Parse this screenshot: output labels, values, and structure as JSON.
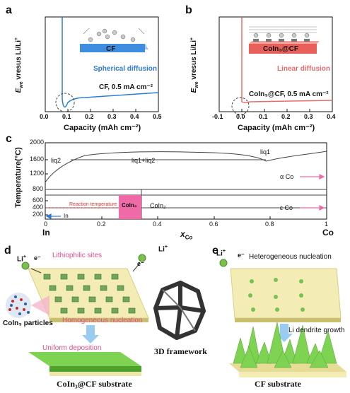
{
  "panels": {
    "a": {
      "label": "a",
      "ylabel": "E_we vresus Li/Li⁺",
      "ylabel_main": "E",
      "ylabel_sub": "we",
      "ylabel_rest": " vresus Li/Li",
      "ylabel_sup": "+",
      "xlabel": "Capacity (mAh cm⁻²)",
      "xticks": [
        "0.0",
        "0.1",
        "0.2",
        "0.3",
        "0.4",
        "0.5"
      ],
      "inset_title": "CF",
      "annotation": "Spherical diffusion",
      "legend": "CF,  0.5 mA cm⁻²",
      "line_color": "#2e7bd6"
    },
    "b": {
      "label": "b",
      "ylabel_main": "E",
      "ylabel_sub": "we",
      "ylabel_rest": " vresus Li/Li",
      "ylabel_sup": "+",
      "xlabel": "Capacity (mAh cm⁻²)",
      "xticks": [
        "-0.1",
        "0.0",
        "0.1",
        "0.2",
        "0.3",
        "0.4"
      ],
      "inset_title": "CoIn₃@CF",
      "annotation": "Linear diffusion",
      "legend": "CoIn₃@CF,  0.5 mA cm⁻²",
      "line_color": "#e86b6b"
    },
    "c": {
      "label": "c",
      "ylabel": "Temperature(°C)",
      "yticks": [
        "200",
        "400",
        "600",
        "800",
        "1200",
        "1600",
        "2000"
      ],
      "xticks": [
        "0",
        "0.2",
        "0.4",
        "0.6",
        "0.8",
        "1"
      ],
      "xlabel_main": "x",
      "xlabel_sub": "Co",
      "left_label": "In",
      "right_label": "Co",
      "regions": {
        "liq2": "liq2",
        "liq1liq2": "liq1+liq2",
        "liq1": "liq1",
        "alpha": "α Co",
        "epsilon": "ε Co",
        "coin2": "CoIn₂",
        "coin3": "CoIn₃",
        "reaction": "Reaction temperature",
        "in_arrow": "In"
      }
    },
    "d": {
      "label": "d",
      "li": "Li",
      "li_sup": "+",
      "electron": "e⁻",
      "lithiophilic": "Lithiophilic sites",
      "particles": "CoIn₃ particles",
      "homogeneous": "Homogeneous nucleation",
      "uniform": "Uniform deposition",
      "substrate": "CoIn₃@CF substrate"
    },
    "center": {
      "framework": "3D framework"
    },
    "e": {
      "label": "e",
      "li": "Li",
      "li_sup": "+",
      "electron": "e⁻",
      "heterogeneous": "Heterogeneous nucleation",
      "dendrite": "Li dendrite growth",
      "substrate": "CF substrate"
    }
  },
  "colors": {
    "blue": "#2e7bd6",
    "red": "#e86b6b",
    "pink": "#f06aa8",
    "green": "#6cc24a",
    "substrate": "#f3ecb5"
  }
}
